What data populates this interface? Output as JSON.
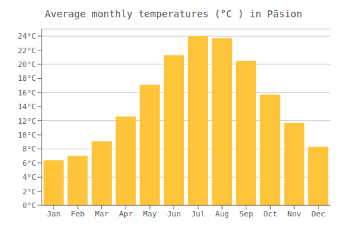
{
  "chart_data": {
    "type": "bar",
    "title": "Average monthly temperatures (°C ) in Pãsion",
    "categories": [
      "Jan",
      "Feb",
      "Mar",
      "Apr",
      "May",
      "Jun",
      "Jul",
      "Aug",
      "Sep",
      "Oct",
      "Nov",
      "Dec"
    ],
    "values": [
      6.4,
      7.0,
      9.1,
      12.6,
      17.1,
      21.3,
      24.0,
      23.7,
      20.5,
      15.7,
      11.7,
      8.3
    ],
    "color": "#FFC53A",
    "ylim": [
      0,
      25
    ],
    "yticks": [
      {
        "value": 0,
        "label": "0°C"
      },
      {
        "value": 2,
        "label": "2°C"
      },
      {
        "value": 4,
        "label": "4°C"
      },
      {
        "value": 6,
        "label": "6°C"
      },
      {
        "value": 8,
        "label": "8°C"
      },
      {
        "value": 10,
        "label": "10°C"
      },
      {
        "value": 12,
        "label": "12°C"
      },
      {
        "value": 14,
        "label": "14°C"
      },
      {
        "value": 16,
        "label": "16°C"
      },
      {
        "value": 18,
        "label": "18°C"
      },
      {
        "value": 20,
        "label": "20°C"
      },
      {
        "value": 22,
        "label": "22°C"
      },
      {
        "value": 24,
        "label": "24°C"
      }
    ],
    "grid": true
  }
}
